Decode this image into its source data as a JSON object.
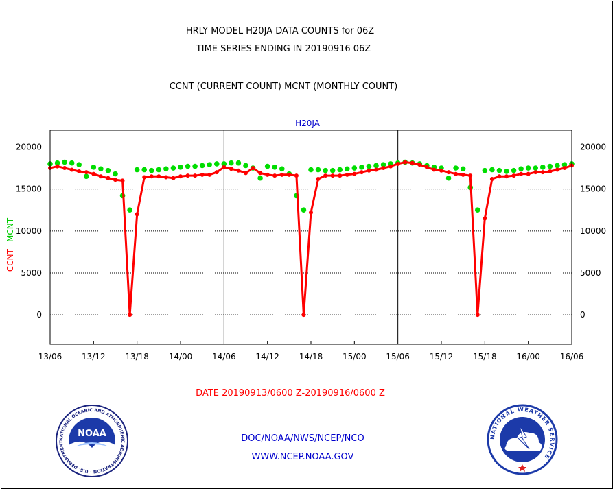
{
  "titles": {
    "line1": "HRLY MODEL H20JA DATA COUNTS for 06Z",
    "line2": "TIME SERIES ENDING IN 20190916 06Z",
    "line3": "CCNT (CURRENT COUNT) MCNT (MONTHLY COUNT)"
  },
  "footer": {
    "date_range": "DATE 20190913/0600 Z-20190916/0600 Z",
    "org": "DOC/NOAA/NWS/NCEP/NCO",
    "url": "WWW.NCEP.NOAA.GOV"
  },
  "logos": {
    "left": {
      "text": "NOAA",
      "ring_text": "NATIONAL OCEANIC AND ATMOSPHERIC ADMINISTRATION · U.S. DEPARTMENT OF COMMERCE"
    },
    "right": {
      "ring_text": "NATIONAL WEATHER SERVICE"
    }
  },
  "colors": {
    "ccnt": "#ff0000",
    "mcnt": "#00dd00",
    "title_blue": "#0000cc",
    "date_red": "#ff0000"
  },
  "chart_data": {
    "type": "line",
    "title": "H20JA",
    "ylabel_ccnt": "CCNT",
    "ylabel_mcnt": "MCNT",
    "ylim": [
      -3500,
      22000
    ],
    "yticks": [
      0,
      5000,
      10000,
      15000,
      20000
    ],
    "xlim": [
      0,
      72
    ],
    "xticks": [
      0,
      6,
      12,
      18,
      24,
      30,
      36,
      42,
      48,
      54,
      60,
      66,
      72
    ],
    "xticklabels": [
      "13/06",
      "13/12",
      "13/18",
      "14/00",
      "14/06",
      "14/12",
      "14/18",
      "15/00",
      "15/06",
      "15/12",
      "15/18",
      "16/00",
      "16/06"
    ],
    "series": [
      {
        "name": "CCNT",
        "x": [
          0,
          1,
          2,
          3,
          4,
          5,
          6,
          7,
          8,
          9,
          10,
          11,
          12,
          13,
          14,
          15,
          16,
          17,
          18,
          19,
          20,
          21,
          22,
          23,
          24,
          25,
          26,
          27,
          28,
          29,
          30,
          31,
          32,
          33,
          34,
          35,
          36,
          37,
          38,
          39,
          40,
          41,
          42,
          43,
          44,
          45,
          46,
          47,
          48,
          49,
          50,
          51,
          52,
          53,
          54,
          55,
          56,
          57,
          58,
          59,
          60,
          61,
          62,
          63,
          64,
          65,
          66,
          67,
          68,
          69,
          70,
          71,
          72
        ],
        "values": [
          17500,
          17700,
          17500,
          17300,
          17100,
          17000,
          16800,
          16500,
          16300,
          16100,
          16000,
          0,
          12000,
          16400,
          16500,
          16500,
          16400,
          16300,
          16500,
          16600,
          16600,
          16700,
          16700,
          17000,
          17600,
          17400,
          17200,
          16900,
          17500,
          16900,
          16700,
          16600,
          16700,
          16700,
          16600,
          0,
          12200,
          16200,
          16600,
          16600,
          16600,
          16700,
          16800,
          17000,
          17200,
          17300,
          17500,
          17700,
          18000,
          18200,
          18100,
          17900,
          17600,
          17300,
          17200,
          17000,
          16800,
          16700,
          16600,
          0,
          11500,
          16200,
          16500,
          16500,
          16600,
          16800,
          16800,
          17000,
          17000,
          17100,
          17300,
          17500,
          17800
        ]
      },
      {
        "name": "MCNT",
        "x": [
          0,
          1,
          2,
          3,
          4,
          5,
          6,
          7,
          8,
          9,
          10,
          11,
          12,
          13,
          14,
          15,
          16,
          17,
          18,
          19,
          20,
          21,
          22,
          23,
          24,
          25,
          26,
          27,
          28,
          29,
          30,
          31,
          32,
          33,
          34,
          35,
          36,
          37,
          38,
          39,
          40,
          41,
          42,
          43,
          44,
          45,
          46,
          47,
          48,
          49,
          50,
          51,
          52,
          53,
          54,
          55,
          56,
          57,
          58,
          59,
          60,
          61,
          62,
          63,
          64,
          65,
          66,
          67,
          68,
          69,
          70,
          71,
          72
        ],
        "values": [
          18000,
          18100,
          18200,
          18100,
          17900,
          16500,
          17600,
          17400,
          17200,
          16800,
          14200,
          12500,
          17300,
          17300,
          17200,
          17300,
          17400,
          17500,
          17600,
          17700,
          17700,
          17800,
          17900,
          18000,
          18000,
          18100,
          18100,
          17800,
          17500,
          16300,
          17700,
          17600,
          17400,
          16800,
          14200,
          12500,
          17300,
          17300,
          17200,
          17200,
          17300,
          17400,
          17500,
          17600,
          17700,
          17800,
          17900,
          18000,
          18100,
          18200,
          18100,
          18000,
          17800,
          17600,
          17500,
          16300,
          17500,
          17400,
          15200,
          12500,
          17200,
          17300,
          17200,
          17100,
          17200,
          17400,
          17500,
          17500,
          17600,
          17700,
          17800,
          17900,
          18000
        ]
      }
    ]
  }
}
